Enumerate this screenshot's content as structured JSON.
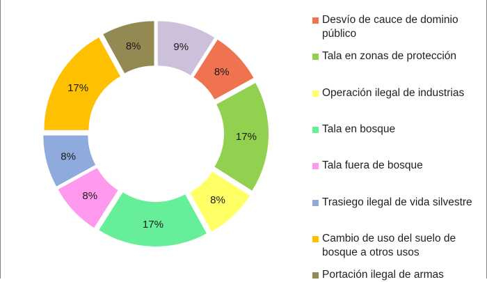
{
  "chart_data": {
    "type": "pie",
    "subtype": "donut",
    "title": "",
    "legend_position": "right",
    "slices": [
      {
        "label": "Desvío de cauce de dominio público",
        "value": 8,
        "value_label": "8%",
        "color": "#f07350"
      },
      {
        "label": "Tala en zonas de protección",
        "value": 17,
        "value_label": "17%",
        "color": "#92d050"
      },
      {
        "label": "Operación ilegal de industrias",
        "value": 8,
        "value_label": "8%",
        "color": "#ffff66"
      },
      {
        "label": "Tala en bosque",
        "value": 17,
        "value_label": "17%",
        "color": "#66ee99"
      },
      {
        "label": "Tala fuera de bosque",
        "value": 8,
        "value_label": "8%",
        "color": "#ff99ee"
      },
      {
        "label": "Trasiego ilegal de vida silvestre",
        "value": 8,
        "value_label": "8%",
        "color": "#8faadc"
      },
      {
        "label": "Cambio de uso del suelo de bosque a otros usos",
        "value": 17,
        "value_label": "17%",
        "color": "#ffc000"
      },
      {
        "label": "Portación ilegal de armas",
        "value": 8,
        "value_label": "8%",
        "color": "#938953"
      },
      {
        "label": "",
        "value": 9,
        "value_label": "9%",
        "color": "#ccc0da"
      }
    ]
  }
}
